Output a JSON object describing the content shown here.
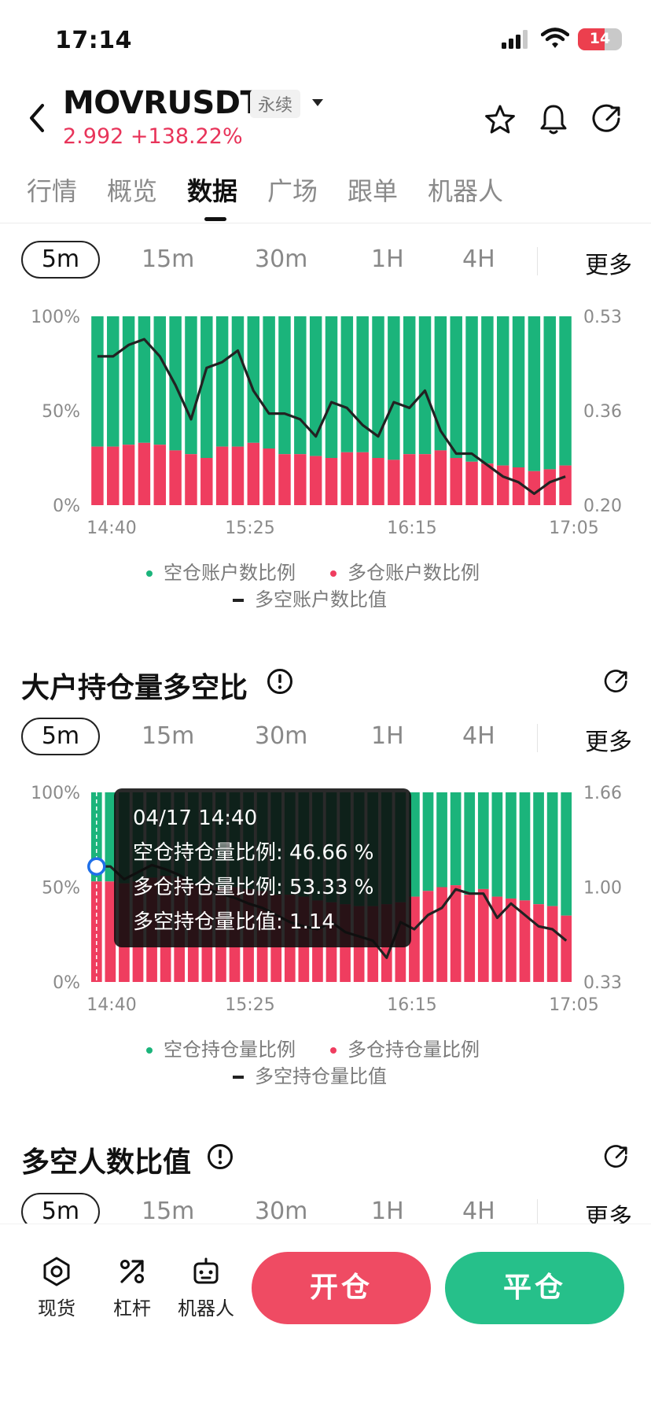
{
  "status": {
    "time": "17:14",
    "battery": "14"
  },
  "header": {
    "symbol": "MOVRUSDT",
    "badge": "永续",
    "price": "2.992",
    "change": "+138.22%"
  },
  "tabs": [
    "行情",
    "概览",
    "数据",
    "广场",
    "跟单",
    "机器人"
  ],
  "active_tab": "数据",
  "timeframes": {
    "selected": "5m",
    "others": [
      "15m",
      "30m",
      "1H",
      "4H"
    ],
    "more": "更多"
  },
  "colors": {
    "short": "#1bb47b",
    "long": "#ef3d5f",
    "ratio_line": "#222222",
    "accent_up": "#e8345a"
  },
  "chart1": {
    "legend_short": "空仓账户数比例",
    "legend_long": "多仓账户数比例",
    "legend_ratio": "多空账户数比值"
  },
  "section2": {
    "title": "大户持仓量多空比"
  },
  "chart2": {
    "legend_short": "空仓持仓量比例",
    "legend_long": "多仓持仓量比例",
    "legend_ratio": "多空持仓量比值",
    "tooltip": {
      "time": "04/17 14:40",
      "short": "空仓持仓量比例: 46.66 %",
      "long": "多仓持仓量比例: 53.33 %",
      "ratio": "多空持仓量比值: 1.14"
    }
  },
  "section3": {
    "title": "多空人数比值"
  },
  "bottom_nav": {
    "spot": "现货",
    "leverage": "杠杆",
    "bot": "机器人",
    "open": "开仓",
    "close": "平仓"
  },
  "chart_data": [
    {
      "type": "bar",
      "stacked": true,
      "x_ticks": [
        "14:40",
        "15:25",
        "16:15",
        "17:05"
      ],
      "y_left_ticks": [
        "0%",
        "50%",
        "100%"
      ],
      "y_right_ticks": [
        "0.20",
        "0.36",
        "0.53"
      ],
      "y_right_range": [
        0.2,
        0.53
      ],
      "series": [
        {
          "name": "多仓账户数比例",
          "values": [
            31,
            31,
            32,
            33,
            32,
            29,
            27,
            25,
            31,
            31,
            33,
            30,
            27,
            27,
            26,
            25,
            28,
            28,
            25,
            24,
            27,
            27,
            29,
            25,
            23,
            22,
            21,
            20,
            18,
            19,
            21
          ]
        },
        {
          "name": "空仓账户数比例",
          "values": [
            69,
            69,
            68,
            67,
            68,
            71,
            73,
            75,
            69,
            69,
            67,
            70,
            73,
            73,
            74,
            75,
            72,
            72,
            75,
            76,
            73,
            73,
            71,
            75,
            77,
            78,
            79,
            80,
            82,
            81,
            79
          ]
        },
        {
          "name": "多空账户数比值",
          "values": [
            0.46,
            0.46,
            0.48,
            0.49,
            0.46,
            0.41,
            0.35,
            0.44,
            0.45,
            0.47,
            0.4,
            0.36,
            0.36,
            0.35,
            0.32,
            0.38,
            0.37,
            0.34,
            0.32,
            0.38,
            0.37,
            0.4,
            0.33,
            0.29,
            0.29,
            0.27,
            0.25,
            0.24,
            0.22,
            0.24,
            0.25
          ]
        }
      ]
    },
    {
      "type": "bar",
      "stacked": true,
      "x_ticks": [
        "14:40",
        "15:25",
        "16:15",
        "17:05"
      ],
      "y_left_ticks": [
        "0%",
        "50%",
        "100%"
      ],
      "y_right_ticks": [
        "0.33",
        "1.00",
        "1.66"
      ],
      "y_right_range": [
        0.33,
        1.66
      ],
      "series": [
        {
          "name": "多仓持仓量比例",
          "values": [
            53,
            53,
            52,
            53,
            55,
            56,
            55,
            52,
            51,
            50,
            50,
            49,
            48,
            46,
            46,
            45,
            43,
            42,
            41,
            40,
            40,
            41,
            42,
            45,
            48,
            50,
            51,
            46,
            49,
            45,
            44,
            43,
            41,
            40,
            35
          ]
        },
        {
          "name": "空仓持仓量比例",
          "values": [
            47,
            47,
            48,
            47,
            45,
            44,
            45,
            48,
            49,
            50,
            50,
            51,
            52,
            54,
            54,
            55,
            57,
            58,
            59,
            60,
            60,
            59,
            58,
            55,
            52,
            50,
            49,
            54,
            51,
            55,
            56,
            57,
            59,
            60,
            65
          ]
        },
        {
          "name": "多空持仓量比值",
          "values": [
            1.14,
            1.14,
            1.05,
            1.1,
            1.15,
            1.12,
            1.08,
            1.02,
            0.98,
            0.95,
            0.92,
            0.88,
            0.85,
            0.8,
            0.75,
            0.72,
            0.7,
            0.75,
            0.68,
            0.65,
            0.62,
            0.5,
            0.75,
            0.7,
            0.8,
            0.85,
            0.98,
            0.95,
            0.95,
            0.78,
            0.88,
            0.8,
            0.72,
            0.7,
            0.62
          ]
        }
      ]
    }
  ]
}
